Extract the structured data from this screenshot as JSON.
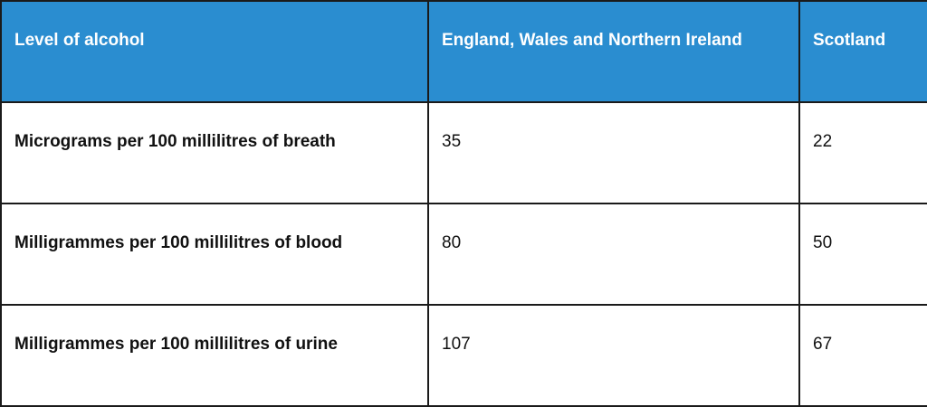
{
  "table": {
    "header": [
      "Level of alcohol",
      "England, Wales and Northern Ireland",
      "Scotland"
    ],
    "rows": [
      [
        "Micrograms per 100 millilitres of breath",
        35,
        22
      ],
      [
        "Milligrammes per 100 millilitres of blood",
        80,
        50
      ],
      [
        "Milligrammes per 100 millilitres of urine",
        107,
        67
      ]
    ]
  }
}
